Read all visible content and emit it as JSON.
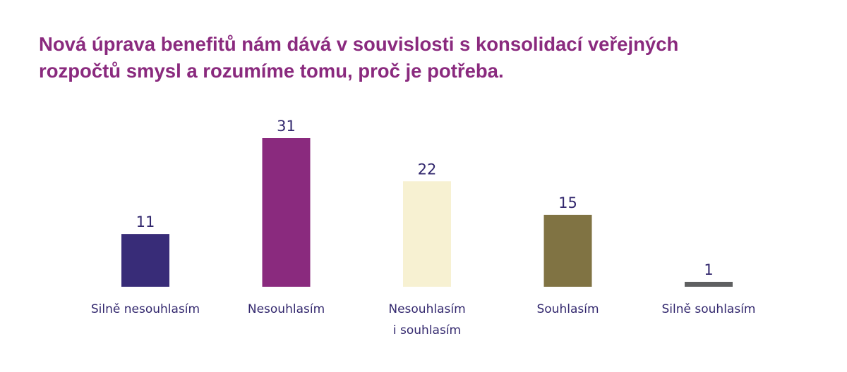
{
  "title_lines": [
    "Nová úprava benefitů nám dává v souvislosti s konsolidací veřejných",
    "rozpočtů smysl a rozumíme tomu, proč je potřeba."
  ],
  "colors": {
    "title": "#8a2a7e",
    "text": "#33286e"
  },
  "chart_data": {
    "type": "bar",
    "title": "Nová úprava benefitů nám dává v souvislosti s konsolidací veřejných rozpočtů smysl a rozumíme tomu, proč je potřeba.",
    "categories": [
      [
        "Silně nesouhlasím"
      ],
      [
        "Nesouhlasím"
      ],
      [
        "Nesouhlasím",
        "i souhlasím"
      ],
      [
        "Souhlasím"
      ],
      [
        "Silně souhlasím"
      ]
    ],
    "values": [
      11,
      31,
      22,
      15,
      1
    ],
    "bar_colors": [
      "#382c78",
      "#8a2a7e",
      "#f7f1d2",
      "#807343",
      "#5f6061"
    ],
    "xlabel": "",
    "ylabel": "",
    "ylim": [
      0,
      31
    ],
    "grid": false,
    "legend": "none",
    "data_labels": true
  }
}
